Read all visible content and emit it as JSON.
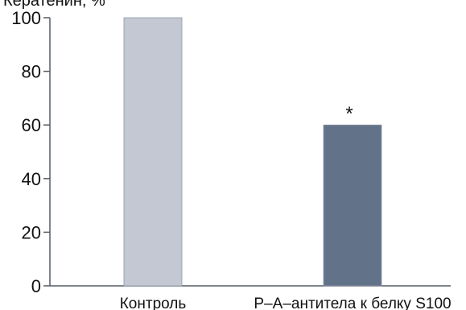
{
  "chart_data": {
    "type": "bar",
    "title": "",
    "xlabel": "",
    "ylabel": "Кератенин, %",
    "categories": [
      "Контроль",
      "Р–А–антитела к белку S100"
    ],
    "series": [
      {
        "values": [
          100,
          60
        ],
        "colors": [
          "#c3c8d3",
          "#627289"
        ]
      }
    ],
    "annotations": [
      "",
      "*"
    ],
    "ylim": [
      0,
      100
    ],
    "yticks": [
      0,
      20,
      40,
      60,
      80,
      100
    ],
    "grid": false,
    "legend": "none"
  }
}
